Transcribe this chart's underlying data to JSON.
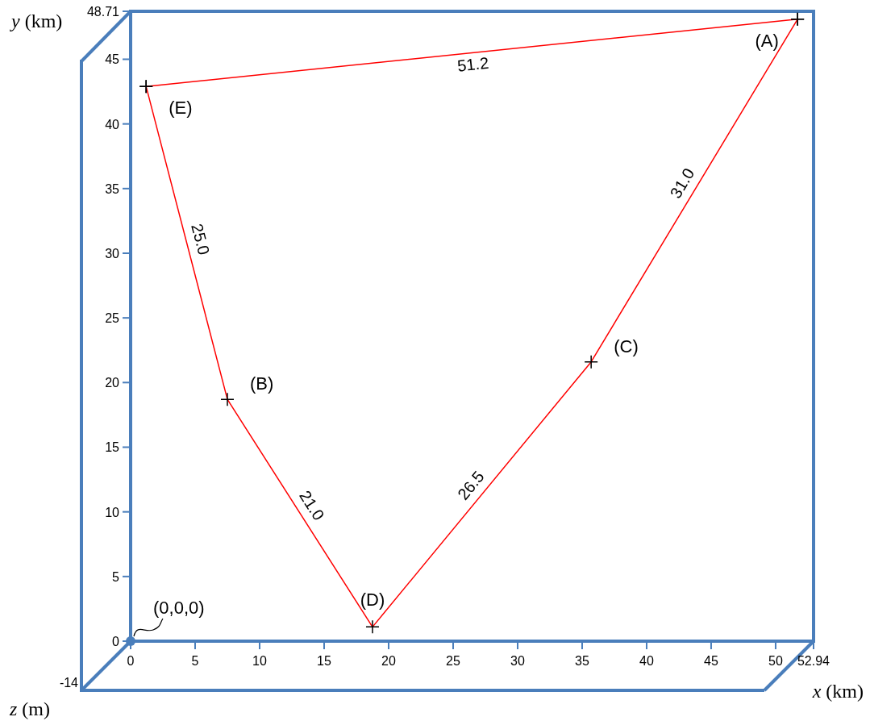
{
  "chart_data": {
    "type": "line",
    "xlabel": "x (km)",
    "ylabel": "y (km)",
    "xlim": [
      0,
      52.94
    ],
    "ylim": [
      0,
      48.71
    ],
    "xticks": [
      0,
      5,
      10,
      15,
      20,
      25,
      30,
      35,
      40,
      45,
      50,
      52.94
    ],
    "yticks": [
      0,
      5,
      10,
      15,
      20,
      25,
      30,
      35,
      40,
      45,
      48.71
    ],
    "grid": false,
    "marker": "cross",
    "line_style": "solid",
    "series": [
      {
        "color": "#ff0000",
        "x": [
          1.2,
          51.7
        ],
        "values": [
          42.9,
          48.1
        ]
      },
      {
        "color": "#ff0000",
        "x": [
          1.2,
          7.5,
          18.75,
          35.7,
          51.7
        ],
        "values": [
          42.9,
          18.7,
          1.1,
          21.6,
          48.1
        ]
      }
    ],
    "annotations": [
      {
        "text": "(A)",
        "x": 51.7,
        "y": 48.1
      },
      {
        "text": "(E)",
        "x": 1.2,
        "y": 42.9
      },
      {
        "text": "(B)",
        "x": 7.5,
        "y": 18.7
      },
      {
        "text": "(D)",
        "x": 18.75,
        "y": 1.1
      },
      {
        "text": "(C)",
        "x": 35.7,
        "y": 21.6
      },
      {
        "text": "(0,0,0)",
        "x": 0,
        "y": 0
      },
      "51.2",
      "25.0",
      "21.0",
      "26.5",
      "31.0",
      "-14",
      "z (m)"
    ]
  }
}
